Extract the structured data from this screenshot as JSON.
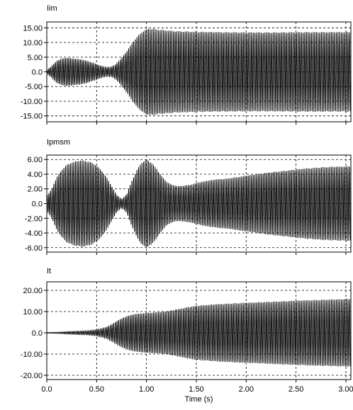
{
  "page": {
    "background": "#ffffff"
  },
  "chart_data": [
    {
      "type": "line",
      "title": "Iim",
      "xlabel": "",
      "ylabel": "",
      "xlim": [
        0,
        3.05
      ],
      "ylim": [
        -17,
        17
      ],
      "grid": true,
      "x_ticks": [
        0.0,
        0.5,
        1.0,
        1.5,
        2.0,
        2.5,
        3.0
      ],
      "y_ticks": [
        15,
        10,
        5,
        0,
        -5,
        -10,
        -15
      ],
      "y_tick_labels": [
        "15.00",
        "10.00",
        "5.00",
        "0.0",
        "-5.00",
        "-10.00",
        "-15.00"
      ],
      "color": "#000000",
      "envelope": {
        "t": [
          0.0,
          0.05,
          0.1,
          0.15,
          0.2,
          0.25,
          0.3,
          0.35,
          0.4,
          0.45,
          0.5,
          0.55,
          0.6,
          0.65,
          0.7,
          0.75,
          0.8,
          0.85,
          0.9,
          0.95,
          1.0,
          1.05,
          1.1,
          1.2,
          1.3,
          1.5,
          1.7,
          2.0,
          2.3,
          2.6,
          2.8,
          3.05
        ],
        "amp": [
          0.5,
          2.0,
          3.8,
          4.5,
          4.8,
          4.6,
          4.4,
          4.2,
          3.8,
          3.2,
          2.6,
          2.0,
          1.5,
          1.7,
          2.8,
          4.8,
          7.0,
          9.5,
          11.8,
          13.5,
          14.6,
          14.8,
          14.5,
          14.2,
          13.9,
          13.7,
          13.6,
          13.5,
          13.5,
          13.6,
          13.6,
          13.6
        ]
      }
    },
    {
      "type": "line",
      "title": "Ipmsm",
      "xlabel": "",
      "ylabel": "",
      "xlim": [
        0,
        3.05
      ],
      "ylim": [
        -6.6,
        6.6
      ],
      "grid": true,
      "x_ticks": [
        0.0,
        0.5,
        1.0,
        1.5,
        2.0,
        2.5,
        3.0
      ],
      "y_ticks": [
        6,
        4,
        2,
        0,
        -2,
        -4,
        -6
      ],
      "y_tick_labels": [
        "6.00",
        "4.00",
        "2.00",
        "0.0",
        "-2.00",
        "-4.00",
        "-6.00"
      ],
      "color": "#000000",
      "envelope": {
        "t": [
          0.0,
          0.05,
          0.1,
          0.15,
          0.2,
          0.25,
          0.3,
          0.35,
          0.4,
          0.45,
          0.5,
          0.55,
          0.6,
          0.65,
          0.7,
          0.75,
          0.8,
          0.85,
          0.9,
          0.95,
          1.0,
          1.05,
          1.1,
          1.15,
          1.2,
          1.25,
          1.3,
          1.35,
          1.4,
          1.45,
          1.5,
          1.6,
          1.7,
          1.8,
          1.9,
          2.0,
          2.2,
          2.4,
          2.6,
          2.8,
          3.05
        ],
        "amp": [
          1.0,
          2.0,
          3.6,
          4.6,
          5.3,
          5.6,
          5.8,
          5.9,
          5.8,
          5.6,
          5.2,
          4.5,
          3.6,
          2.4,
          1.2,
          0.6,
          1.2,
          3.0,
          4.5,
          5.6,
          6.0,
          5.6,
          4.8,
          3.8,
          3.0,
          2.6,
          2.4,
          2.4,
          2.5,
          2.6,
          2.8,
          3.1,
          3.3,
          3.4,
          3.6,
          3.8,
          4.2,
          4.5,
          4.8,
          5.0,
          5.1
        ]
      }
    },
    {
      "type": "line",
      "title": "It",
      "xlabel": "Time (s)",
      "ylabel": "",
      "xlim": [
        0,
        3.05
      ],
      "ylim": [
        -22,
        24
      ],
      "grid": true,
      "x_ticks": [
        0.0,
        0.5,
        1.0,
        1.5,
        2.0,
        2.5,
        3.0
      ],
      "x_tick_labels": [
        "0.0",
        "0.50",
        "1.00",
        "1.50",
        "2.00",
        "2.50",
        "3.00"
      ],
      "y_ticks": [
        20,
        10,
        0,
        -10,
        -20
      ],
      "y_tick_labels": [
        "20.00",
        "10.00",
        "0.0",
        "-10.00",
        "-20.00"
      ],
      "color": "#000000",
      "envelope": {
        "t": [
          0.0,
          0.1,
          0.2,
          0.3,
          0.4,
          0.45,
          0.5,
          0.55,
          0.6,
          0.65,
          0.7,
          0.75,
          0.8,
          0.85,
          0.9,
          0.95,
          1.0,
          1.1,
          1.2,
          1.3,
          1.4,
          1.5,
          1.7,
          1.9,
          2.1,
          2.3,
          2.5,
          2.7,
          2.9,
          3.05
        ],
        "amp": [
          0.2,
          0.3,
          0.6,
          0.8,
          1.0,
          1.2,
          1.5,
          2.0,
          2.8,
          4.0,
          5.5,
          6.8,
          7.8,
          8.5,
          8.9,
          9.2,
          9.4,
          9.7,
          10.1,
          11.0,
          12.0,
          12.8,
          13.5,
          14.0,
          14.4,
          14.8,
          15.2,
          15.5,
          15.8,
          16.0
        ]
      }
    }
  ]
}
